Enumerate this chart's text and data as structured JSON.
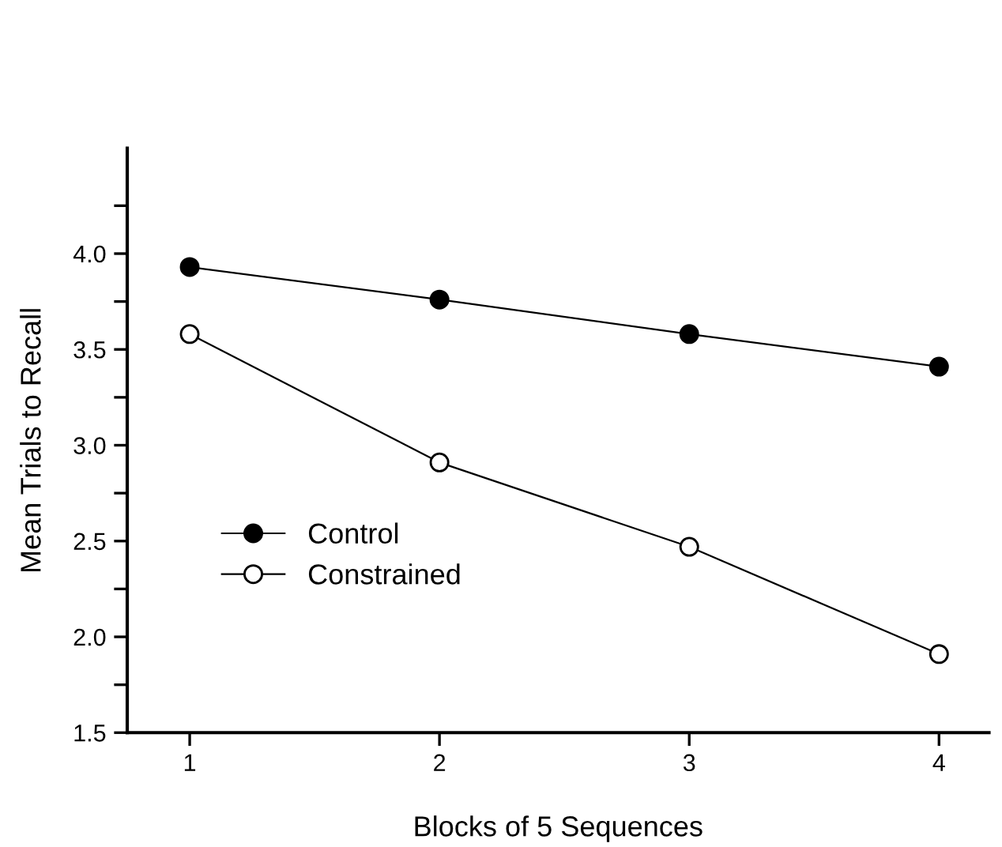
{
  "chart_data": {
    "type": "line",
    "xlabel": "Blocks of 5 Sequences",
    "ylabel": "Mean Trials to Recall",
    "x": [
      1,
      2,
      3,
      4
    ],
    "series": [
      {
        "name": "Control",
        "color": "#000000",
        "values": [
          3.93,
          3.76,
          3.58,
          3.41
        ],
        "marker": "circle"
      },
      {
        "name": "Constrained",
        "color": "#000000",
        "values": [
          3.58,
          2.91,
          2.47,
          1.91
        ],
        "marker": "circle"
      }
    ],
    "xlim": [
      0.75,
      4.2
    ],
    "xticks": [
      1,
      2,
      3,
      4
    ],
    "ylim": [
      1.5,
      4.55
    ],
    "yticks": [
      {
        "value": 1.5,
        "label": "1.5"
      },
      {
        "value": 1.75,
        "label": null
      },
      {
        "value": 2.0,
        "label": "2.0"
      },
      {
        "value": 2.25,
        "label": null
      },
      {
        "value": 2.5,
        "label": "2.5"
      },
      {
        "value": 2.75,
        "label": null
      },
      {
        "value": 3.0,
        "label": "3.0"
      },
      {
        "value": 3.25,
        "label": null
      },
      {
        "value": 3.5,
        "label": "3.5"
      },
      {
        "value": 3.75,
        "label": null
      },
      {
        "value": 4.0,
        "label": "4.0"
      },
      {
        "value": 4.25,
        "label": null
      }
    ],
    "grid": false,
    "legend": "bottom left",
    "line_style": "solid"
  }
}
